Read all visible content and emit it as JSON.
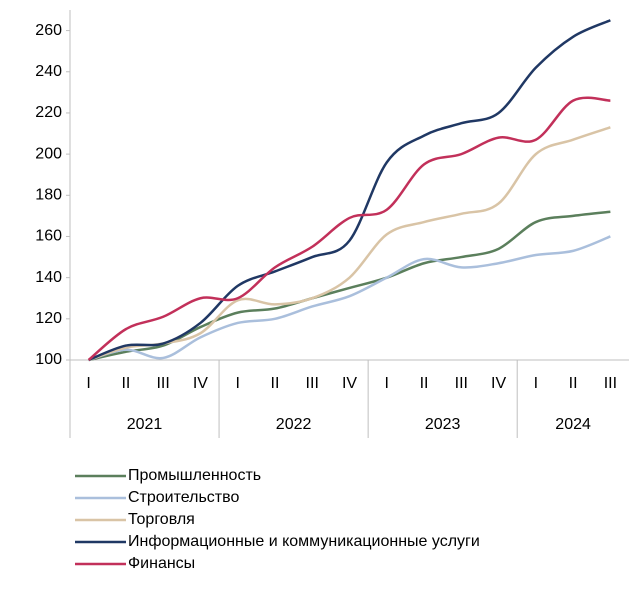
{
  "chart_data": {
    "type": "line",
    "categories": [
      "I",
      "II",
      "III",
      "IV",
      "I",
      "II",
      "III",
      "IV",
      "I",
      "II",
      "III",
      "IV",
      "I",
      "II",
      "III"
    ],
    "groups": [
      {
        "label": "2021",
        "span": 4
      },
      {
        "label": "2022",
        "span": 4
      },
      {
        "label": "2023",
        "span": 4
      },
      {
        "label": "2024",
        "span": 3
      }
    ],
    "series": [
      {
        "name": "Промышленность",
        "color": "#5b7f5c",
        "values": [
          100,
          104,
          107,
          116,
          123,
          125,
          130,
          135,
          140,
          147,
          150,
          154,
          167,
          170,
          172
        ]
      },
      {
        "name": "Строительство",
        "color": "#aabfdc",
        "values": [
          100,
          105,
          101,
          111,
          118,
          120,
          126,
          131,
          140,
          149,
          145,
          147,
          151,
          153,
          160
        ]
      },
      {
        "name": "Торговля",
        "color": "#d9c4a6",
        "values": [
          100,
          106,
          108,
          113,
          129,
          127,
          130,
          140,
          161,
          167,
          171,
          176,
          200,
          207,
          213
        ]
      },
      {
        "name": "Информационные и коммуникационные услуги",
        "color": "#203864",
        "values": [
          100,
          107,
          108,
          118,
          136,
          143,
          150,
          158,
          196,
          209,
          215,
          220,
          242,
          257,
          265
        ]
      },
      {
        "name": "Финансы",
        "color": "#c2305a",
        "values": [
          100,
          115,
          121,
          130,
          130,
          145,
          155,
          169,
          173,
          195,
          200,
          208,
          207,
          226,
          226
        ]
      }
    ],
    "ylim": [
      100,
      270
    ],
    "yticks": [
      100,
      120,
      140,
      160,
      180,
      200,
      220,
      240,
      260
    ],
    "legend": "bottom-left"
  }
}
